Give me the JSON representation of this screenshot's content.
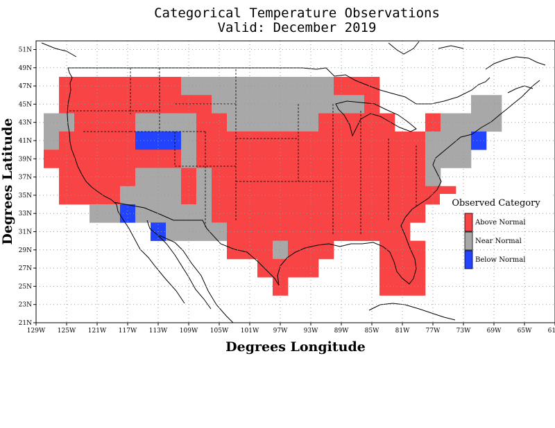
{
  "title_line1": "Categorical Temperature Observations",
  "title_line2": "Valid: December 2019",
  "xlabel": "Degrees Longitude",
  "ylabel": "Degrees Latitude",
  "x_ticks": [
    "129W",
    "125W",
    "121W",
    "117W",
    "113W",
    "109W",
    "105W",
    "101W",
    "97W",
    "93W",
    "89W",
    "85W",
    "81W",
    "77W",
    "73W",
    "69W",
    "65W",
    "61W"
  ],
  "y_ticks": [
    "51N",
    "49N",
    "47N",
    "45N",
    "43N",
    "41N",
    "39N",
    "37N",
    "35N",
    "33N",
    "31N",
    "29N",
    "27N",
    "25N",
    "23N",
    "21N"
  ],
  "legend": {
    "title": "Observed Category",
    "items": [
      {
        "label": "Above Normal",
        "color": "#f84444"
      },
      {
        "label": "Near Normal",
        "color": "#a8a8a8"
      },
      {
        "label": "Below Normal",
        "color": "#2244ff"
      }
    ]
  },
  "chart_data": {
    "type": "heatmap",
    "cell_size_degrees": 2,
    "xlim_lon": [
      -129,
      -61
    ],
    "ylim_lat": [
      21,
      52
    ],
    "categories": [
      "Above Normal",
      "Near Normal",
      "Below Normal"
    ],
    "cells": [
      {
        "lon": -125,
        "lat": 47,
        "cat": "A"
      },
      {
        "lon": -123,
        "lat": 47,
        "cat": "A"
      },
      {
        "lon": -121,
        "lat": 47,
        "cat": "A"
      },
      {
        "lon": -119,
        "lat": 47,
        "cat": "A"
      },
      {
        "lon": -117,
        "lat": 47,
        "cat": "A"
      },
      {
        "lon": -115,
        "lat": 47,
        "cat": "A"
      },
      {
        "lon": -113,
        "lat": 47,
        "cat": "A"
      },
      {
        "lon": -111,
        "lat": 47,
        "cat": "A"
      },
      {
        "lon": -109,
        "lat": 47,
        "cat": "N"
      },
      {
        "lon": -107,
        "lat": 47,
        "cat": "N"
      },
      {
        "lon": -105,
        "lat": 47,
        "cat": "N"
      },
      {
        "lon": -103,
        "lat": 47,
        "cat": "N"
      },
      {
        "lon": -101,
        "lat": 47,
        "cat": "N"
      },
      {
        "lon": -99,
        "lat": 47,
        "cat": "N"
      },
      {
        "lon": -97,
        "lat": 47,
        "cat": "N"
      },
      {
        "lon": -95,
        "lat": 47,
        "cat": "N"
      },
      {
        "lon": -93,
        "lat": 47,
        "cat": "N"
      },
      {
        "lon": -91,
        "lat": 47,
        "cat": "N"
      },
      {
        "lon": -89,
        "lat": 47,
        "cat": "A"
      },
      {
        "lon": -87,
        "lat": 47,
        "cat": "A"
      },
      {
        "lon": -85,
        "lat": 47,
        "cat": "A"
      },
      {
        "lon": -125,
        "lat": 45,
        "cat": "A"
      },
      {
        "lon": -123,
        "lat": 45,
        "cat": "A"
      },
      {
        "lon": -121,
        "lat": 45,
        "cat": "A"
      },
      {
        "lon": -119,
        "lat": 45,
        "cat": "A"
      },
      {
        "lon": -117,
        "lat": 45,
        "cat": "A"
      },
      {
        "lon": -115,
        "lat": 45,
        "cat": "A"
      },
      {
        "lon": -113,
        "lat": 45,
        "cat": "A"
      },
      {
        "lon": -111,
        "lat": 45,
        "cat": "A"
      },
      {
        "lon": -109,
        "lat": 45,
        "cat": "A"
      },
      {
        "lon": -107,
        "lat": 45,
        "cat": "A"
      },
      {
        "lon": -105,
        "lat": 45,
        "cat": "N"
      },
      {
        "lon": -103,
        "lat": 45,
        "cat": "N"
      },
      {
        "lon": -101,
        "lat": 45,
        "cat": "N"
      },
      {
        "lon": -99,
        "lat": 45,
        "cat": "N"
      },
      {
        "lon": -97,
        "lat": 45,
        "cat": "N"
      },
      {
        "lon": -95,
        "lat": 45,
        "cat": "N"
      },
      {
        "lon": -93,
        "lat": 45,
        "cat": "N"
      },
      {
        "lon": -91,
        "lat": 45,
        "cat": "N"
      },
      {
        "lon": -89,
        "lat": 45,
        "cat": "N"
      },
      {
        "lon": -87,
        "lat": 45,
        "cat": "N"
      },
      {
        "lon": -85,
        "lat": 45,
        "cat": "A"
      },
      {
        "lon": -71,
        "lat": 45,
        "cat": "N"
      },
      {
        "lon": -69,
        "lat": 45,
        "cat": "N"
      },
      {
        "lon": -127,
        "lat": 43,
        "cat": "N"
      },
      {
        "lon": -125,
        "lat": 43,
        "cat": "N"
      },
      {
        "lon": -123,
        "lat": 43,
        "cat": "A"
      },
      {
        "lon": -121,
        "lat": 43,
        "cat": "A"
      },
      {
        "lon": -119,
        "lat": 43,
        "cat": "A"
      },
      {
        "lon": -117,
        "lat": 43,
        "cat": "A"
      },
      {
        "lon": -115,
        "lat": 43,
        "cat": "N"
      },
      {
        "lon": -113,
        "lat": 43,
        "cat": "N"
      },
      {
        "lon": -111,
        "lat": 43,
        "cat": "N"
      },
      {
        "lon": -109,
        "lat": 43,
        "cat": "N"
      },
      {
        "lon": -107,
        "lat": 43,
        "cat": "A"
      },
      {
        "lon": -105,
        "lat": 43,
        "cat": "A"
      },
      {
        "lon": -103,
        "lat": 43,
        "cat": "N"
      },
      {
        "lon": -101,
        "lat": 43,
        "cat": "N"
      },
      {
        "lon": -99,
        "lat": 43,
        "cat": "N"
      },
      {
        "lon": -97,
        "lat": 43,
        "cat": "N"
      },
      {
        "lon": -95,
        "lat": 43,
        "cat": "N"
      },
      {
        "lon": -93,
        "lat": 43,
        "cat": "N"
      },
      {
        "lon": -91,
        "lat": 43,
        "cat": "A"
      },
      {
        "lon": -89,
        "lat": 43,
        "cat": "A"
      },
      {
        "lon": -87,
        "lat": 43,
        "cat": "A"
      },
      {
        "lon": -85,
        "lat": 43,
        "cat": "A"
      },
      {
        "lon": -83,
        "lat": 43,
        "cat": "A"
      },
      {
        "lon": -77,
        "lat": 43,
        "cat": "A"
      },
      {
        "lon": -75,
        "lat": 43,
        "cat": "N"
      },
      {
        "lon": -73,
        "lat": 43,
        "cat": "N"
      },
      {
        "lon": -71,
        "lat": 43,
        "cat": "N"
      },
      {
        "lon": -69,
        "lat": 43,
        "cat": "N"
      },
      {
        "lon": -127,
        "lat": 41,
        "cat": "N"
      },
      {
        "lon": -125,
        "lat": 41,
        "cat": "A"
      },
      {
        "lon": -123,
        "lat": 41,
        "cat": "A"
      },
      {
        "lon": -121,
        "lat": 41,
        "cat": "A"
      },
      {
        "lon": -119,
        "lat": 41,
        "cat": "A"
      },
      {
        "lon": -117,
        "lat": 41,
        "cat": "A"
      },
      {
        "lon": -115,
        "lat": 41,
        "cat": "B"
      },
      {
        "lon": -113,
        "lat": 41,
        "cat": "B"
      },
      {
        "lon": -111,
        "lat": 41,
        "cat": "B"
      },
      {
        "lon": -109,
        "lat": 41,
        "cat": "N"
      },
      {
        "lon": -107,
        "lat": 41,
        "cat": "A"
      },
      {
        "lon": -105,
        "lat": 41,
        "cat": "A"
      },
      {
        "lon": -103,
        "lat": 41,
        "cat": "A"
      },
      {
        "lon": -101,
        "lat": 41,
        "cat": "A"
      },
      {
        "lon": -99,
        "lat": 41,
        "cat": "A"
      },
      {
        "lon": -97,
        "lat": 41,
        "cat": "A"
      },
      {
        "lon": -95,
        "lat": 41,
        "cat": "A"
      },
      {
        "lon": -93,
        "lat": 41,
        "cat": "A"
      },
      {
        "lon": -91,
        "lat": 41,
        "cat": "A"
      },
      {
        "lon": -89,
        "lat": 41,
        "cat": "A"
      },
      {
        "lon": -87,
        "lat": 41,
        "cat": "A"
      },
      {
        "lon": -85,
        "lat": 41,
        "cat": "A"
      },
      {
        "lon": -83,
        "lat": 41,
        "cat": "A"
      },
      {
        "lon": -81,
        "lat": 41,
        "cat": "A"
      },
      {
        "lon": -79,
        "lat": 41,
        "cat": "A"
      },
      {
        "lon": -77,
        "lat": 41,
        "cat": "N"
      },
      {
        "lon": -75,
        "lat": 41,
        "cat": "N"
      },
      {
        "lon": -73,
        "lat": 41,
        "cat": "N"
      },
      {
        "lon": -71,
        "lat": 41,
        "cat": "B"
      },
      {
        "lon": -127,
        "lat": 39,
        "cat": "A"
      },
      {
        "lon": -125,
        "lat": 39,
        "cat": "A"
      },
      {
        "lon": -123,
        "lat": 39,
        "cat": "A"
      },
      {
        "lon": -121,
        "lat": 39,
        "cat": "A"
      },
      {
        "lon": -119,
        "lat": 39,
        "cat": "A"
      },
      {
        "lon": -117,
        "lat": 39,
        "cat": "A"
      },
      {
        "lon": -115,
        "lat": 39,
        "cat": "A"
      },
      {
        "lon": -113,
        "lat": 39,
        "cat": "A"
      },
      {
        "lon": -111,
        "lat": 39,
        "cat": "A"
      },
      {
        "lon": -109,
        "lat": 39,
        "cat": "N"
      },
      {
        "lon": -107,
        "lat": 39,
        "cat": "A"
      },
      {
        "lon": -105,
        "lat": 39,
        "cat": "A"
      },
      {
        "lon": -103,
        "lat": 39,
        "cat": "A"
      },
      {
        "lon": -101,
        "lat": 39,
        "cat": "A"
      },
      {
        "lon": -99,
        "lat": 39,
        "cat": "A"
      },
      {
        "lon": -97,
        "lat": 39,
        "cat": "A"
      },
      {
        "lon": -95,
        "lat": 39,
        "cat": "A"
      },
      {
        "lon": -93,
        "lat": 39,
        "cat": "A"
      },
      {
        "lon": -91,
        "lat": 39,
        "cat": "A"
      },
      {
        "lon": -89,
        "lat": 39,
        "cat": "A"
      },
      {
        "lon": -87,
        "lat": 39,
        "cat": "A"
      },
      {
        "lon": -85,
        "lat": 39,
        "cat": "A"
      },
      {
        "lon": -83,
        "lat": 39,
        "cat": "A"
      },
      {
        "lon": -81,
        "lat": 39,
        "cat": "A"
      },
      {
        "lon": -79,
        "lat": 39,
        "cat": "A"
      },
      {
        "lon": -77,
        "lat": 39,
        "cat": "N"
      },
      {
        "lon": -75,
        "lat": 39,
        "cat": "N"
      },
      {
        "lon": -73,
        "lat": 39,
        "cat": "N"
      },
      {
        "lon": -125,
        "lat": 37,
        "cat": "A"
      },
      {
        "lon": -123,
        "lat": 37,
        "cat": "A"
      },
      {
        "lon": -121,
        "lat": 37,
        "cat": "A"
      },
      {
        "lon": -119,
        "lat": 37,
        "cat": "A"
      },
      {
        "lon": -117,
        "lat": 37,
        "cat": "A"
      },
      {
        "lon": -115,
        "lat": 37,
        "cat": "N"
      },
      {
        "lon": -113,
        "lat": 37,
        "cat": "N"
      },
      {
        "lon": -111,
        "lat": 37,
        "cat": "N"
      },
      {
        "lon": -109,
        "lat": 37,
        "cat": "A"
      },
      {
        "lon": -107,
        "lat": 37,
        "cat": "N"
      },
      {
        "lon": -105,
        "lat": 37,
        "cat": "A"
      },
      {
        "lon": -103,
        "lat": 37,
        "cat": "A"
      },
      {
        "lon": -101,
        "lat": 37,
        "cat": "A"
      },
      {
        "lon": -99,
        "lat": 37,
        "cat": "A"
      },
      {
        "lon": -97,
        "lat": 37,
        "cat": "A"
      },
      {
        "lon": -95,
        "lat": 37,
        "cat": "A"
      },
      {
        "lon": -93,
        "lat": 37,
        "cat": "A"
      },
      {
        "lon": -91,
        "lat": 37,
        "cat": "A"
      },
      {
        "lon": -89,
        "lat": 37,
        "cat": "A"
      },
      {
        "lon": -87,
        "lat": 37,
        "cat": "A"
      },
      {
        "lon": -85,
        "lat": 37,
        "cat": "A"
      },
      {
        "lon": -83,
        "lat": 37,
        "cat": "A"
      },
      {
        "lon": -81,
        "lat": 37,
        "cat": "A"
      },
      {
        "lon": -79,
        "lat": 37,
        "cat": "A"
      },
      {
        "lon": -77,
        "lat": 37,
        "cat": "N"
      },
      {
        "lon": -125,
        "lat": 35,
        "cat": "A"
      },
      {
        "lon": -123,
        "lat": 35,
        "cat": "A"
      },
      {
        "lon": -121,
        "lat": 35,
        "cat": "A"
      },
      {
        "lon": -119,
        "lat": 35,
        "cat": "A"
      },
      {
        "lon": -117,
        "lat": 35,
        "cat": "N"
      },
      {
        "lon": -115,
        "lat": 35,
        "cat": "N"
      },
      {
        "lon": -113,
        "lat": 35,
        "cat": "N"
      },
      {
        "lon": -111,
        "lat": 35,
        "cat": "N"
      },
      {
        "lon": -109,
        "lat": 35,
        "cat": "A"
      },
      {
        "lon": -107,
        "lat": 35,
        "cat": "N"
      },
      {
        "lon": -105,
        "lat": 35,
        "cat": "A"
      },
      {
        "lon": -103,
        "lat": 35,
        "cat": "A"
      },
      {
        "lon": -101,
        "lat": 35,
        "cat": "A"
      },
      {
        "lon": -99,
        "lat": 35,
        "cat": "A"
      },
      {
        "lon": -97,
        "lat": 35,
        "cat": "A"
      },
      {
        "lon": -95,
        "lat": 35,
        "cat": "A"
      },
      {
        "lon": -93,
        "lat": 35,
        "cat": "A"
      },
      {
        "lon": -91,
        "lat": 35,
        "cat": "A"
      },
      {
        "lon": -89,
        "lat": 35,
        "cat": "A"
      },
      {
        "lon": -87,
        "lat": 35,
        "cat": "A"
      },
      {
        "lon": -85,
        "lat": 35,
        "cat": "A"
      },
      {
        "lon": -83,
        "lat": 35,
        "cat": "A"
      },
      {
        "lon": -81,
        "lat": 35,
        "cat": "A"
      },
      {
        "lon": -79,
        "lat": 35,
        "cat": "A"
      },
      {
        "lon": -77,
        "lat": 35,
        "cat": "A"
      },
      {
        "lon": -75,
        "lat": 35,
        "cat": "A"
      },
      {
        "lon": -121,
        "lat": 33,
        "cat": "N"
      },
      {
        "lon": -119,
        "lat": 33,
        "cat": "N"
      },
      {
        "lon": -117,
        "lat": 33,
        "cat": "B"
      },
      {
        "lon": -115,
        "lat": 33,
        "cat": "N"
      },
      {
        "lon": -113,
        "lat": 33,
        "cat": "N"
      },
      {
        "lon": -111,
        "lat": 33,
        "cat": "N"
      },
      {
        "lon": -109,
        "lat": 33,
        "cat": "N"
      },
      {
        "lon": -107,
        "lat": 33,
        "cat": "N"
      },
      {
        "lon": -105,
        "lat": 33,
        "cat": "A"
      },
      {
        "lon": -103,
        "lat": 33,
        "cat": "A"
      },
      {
        "lon": -101,
        "lat": 33,
        "cat": "A"
      },
      {
        "lon": -99,
        "lat": 33,
        "cat": "A"
      },
      {
        "lon": -97,
        "lat": 33,
        "cat": "A"
      },
      {
        "lon": -95,
        "lat": 33,
        "cat": "A"
      },
      {
        "lon": -93,
        "lat": 33,
        "cat": "A"
      },
      {
        "lon": -91,
        "lat": 33,
        "cat": "A"
      },
      {
        "lon": -89,
        "lat": 33,
        "cat": "A"
      },
      {
        "lon": -87,
        "lat": 33,
        "cat": "A"
      },
      {
        "lon": -85,
        "lat": 33,
        "cat": "A"
      },
      {
        "lon": -83,
        "lat": 33,
        "cat": "A"
      },
      {
        "lon": -81,
        "lat": 33,
        "cat": "A"
      },
      {
        "lon": -79,
        "lat": 33,
        "cat": "A"
      },
      {
        "lon": -113,
        "lat": 31,
        "cat": "B"
      },
      {
        "lon": -111,
        "lat": 31,
        "cat": "N"
      },
      {
        "lon": -109,
        "lat": 31,
        "cat": "N"
      },
      {
        "lon": -107,
        "lat": 31,
        "cat": "N"
      },
      {
        "lon": -105,
        "lat": 31,
        "cat": "N"
      },
      {
        "lon": -103,
        "lat": 31,
        "cat": "A"
      },
      {
        "lon": -101,
        "lat": 31,
        "cat": "A"
      },
      {
        "lon": -99,
        "lat": 31,
        "cat": "A"
      },
      {
        "lon": -97,
        "lat": 31,
        "cat": "A"
      },
      {
        "lon": -95,
        "lat": 31,
        "cat": "A"
      },
      {
        "lon": -93,
        "lat": 31,
        "cat": "A"
      },
      {
        "lon": -91,
        "lat": 31,
        "cat": "A"
      },
      {
        "lon": -89,
        "lat": 31,
        "cat": "A"
      },
      {
        "lon": -87,
        "lat": 31,
        "cat": "A"
      },
      {
        "lon": -85,
        "lat": 31,
        "cat": "A"
      },
      {
        "lon": -83,
        "lat": 31,
        "cat": "A"
      },
      {
        "lon": -81,
        "lat": 31,
        "cat": "A"
      },
      {
        "lon": -103,
        "lat": 29,
        "cat": "A"
      },
      {
        "lon": -101,
        "lat": 29,
        "cat": "A"
      },
      {
        "lon": -99,
        "lat": 29,
        "cat": "A"
      },
      {
        "lon": -97,
        "lat": 29,
        "cat": "N"
      },
      {
        "lon": -95,
        "lat": 29,
        "cat": "A"
      },
      {
        "lon": -93,
        "lat": 29,
        "cat": "A"
      },
      {
        "lon": -91,
        "lat": 29,
        "cat": "A"
      },
      {
        "lon": -83,
        "lat": 29,
        "cat": "A"
      },
      {
        "lon": -81,
        "lat": 29,
        "cat": "A"
      },
      {
        "lon": -79,
        "lat": 29,
        "cat": "A"
      },
      {
        "lon": -99,
        "lat": 27,
        "cat": "A"
      },
      {
        "lon": -97,
        "lat": 27,
        "cat": "A"
      },
      {
        "lon": -95,
        "lat": 27,
        "cat": "A"
      },
      {
        "lon": -93,
        "lat": 27,
        "cat": "A"
      },
      {
        "lon": -83,
        "lat": 27,
        "cat": "A"
      },
      {
        "lon": -81,
        "lat": 27,
        "cat": "A"
      },
      {
        "lon": -79,
        "lat": 27,
        "cat": "A"
      },
      {
        "lon": -97,
        "lat": 25,
        "cat": "A"
      },
      {
        "lon": -83,
        "lat": 25,
        "cat": "A"
      },
      {
        "lon": -81,
        "lat": 25,
        "cat": "A"
      },
      {
        "lon": -79,
        "lat": 25,
        "cat": "A"
      }
    ]
  }
}
